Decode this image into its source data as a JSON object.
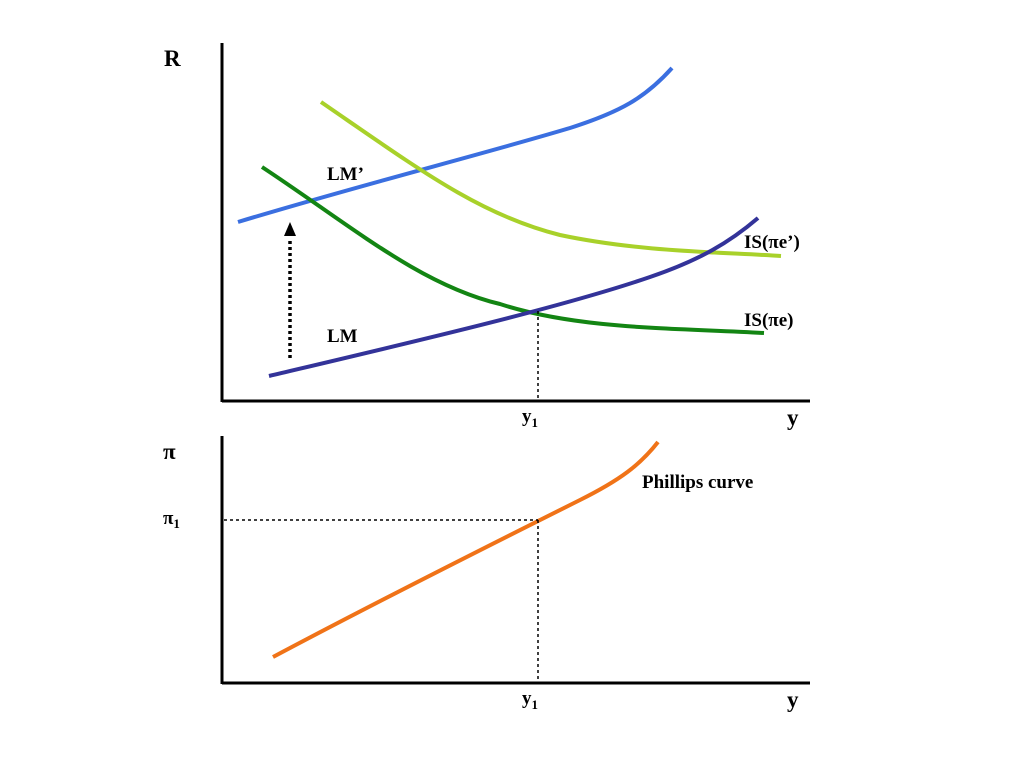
{
  "top_panel": {
    "y_axis_label": "R",
    "x_axis_label": "y",
    "x_tick_label": "y",
    "x_tick_subscript": "1",
    "curves": [
      {
        "label": "LM’",
        "color": "#3b6fe0"
      },
      {
        "label": "IS(πe’)",
        "color": "#a8d12a"
      },
      {
        "label": "IS(πe)",
        "color": "#138513"
      },
      {
        "label": "LM",
        "color": "#333399"
      }
    ]
  },
  "bottom_panel": {
    "y_axis_label": "π",
    "x_axis_label": "y",
    "y_tick_label": "π",
    "y_tick_subscript": "1",
    "x_tick_label": "y",
    "x_tick_subscript": "1",
    "curves": [
      {
        "label": "Phillips curve",
        "color": "#f07318"
      }
    ]
  }
}
